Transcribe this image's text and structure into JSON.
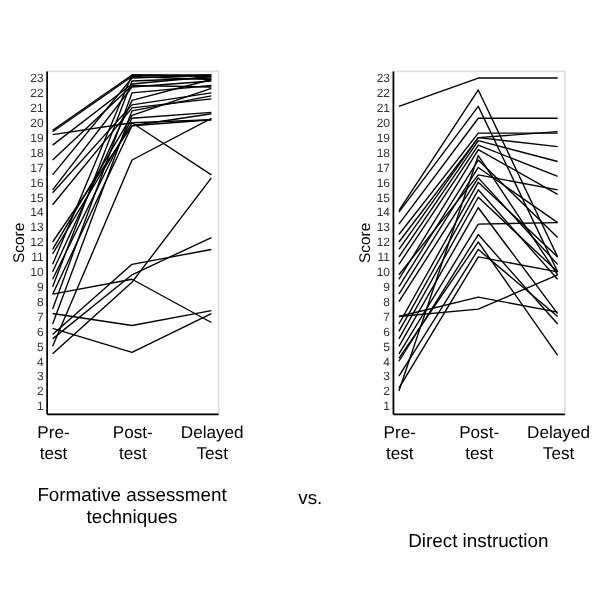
{
  "chart_data": [
    {
      "type": "line",
      "title": "Formative assessment techniques",
      "ylabel": "Score",
      "categories": [
        "Pre-\ntest",
        "Post-\ntest",
        "Delayed\nTest"
      ],
      "ylim": [
        0.5,
        23.5
      ],
      "yticks": [
        1,
        2,
        3,
        4,
        5,
        6,
        7,
        8,
        9,
        10,
        11,
        12,
        13,
        14,
        15,
        16,
        17,
        18,
        19,
        20,
        21,
        22,
        23
      ],
      "grid": false,
      "legend": false,
      "marker": "none",
      "line_style": "solid",
      "series": [
        {
          "color": "#000000",
          "values": [
            19.5,
            23.2,
            23.2
          ]
        },
        {
          "color": "#000000",
          "values": [
            19.4,
            23.1,
            22.9
          ]
        },
        {
          "color": "#000000",
          "values": [
            19.2,
            20.0,
            16.5
          ]
        },
        {
          "color": "#000000",
          "values": [
            18.5,
            22.6,
            23.1
          ]
        },
        {
          "color": "#000000",
          "values": [
            17.5,
            22.5,
            22.4
          ]
        },
        {
          "color": "#000000",
          "values": [
            16.5,
            23.0,
            23.2
          ]
        },
        {
          "color": "#000000",
          "values": [
            15.5,
            22.4,
            22.8
          ]
        },
        {
          "color": "#000000",
          "values": [
            15.3,
            21.2,
            22.0
          ]
        },
        {
          "color": "#000000",
          "values": [
            14.5,
            21.0,
            21.6
          ]
        },
        {
          "color": "#000000",
          "values": [
            11.5,
            20.5,
            22.3
          ]
        },
        {
          "color": "#000000",
          "values": [
            11.2,
            20.0,
            20.2
          ]
        },
        {
          "color": "#000000",
          "values": [
            10.5,
            23.2,
            23.1
          ]
        },
        {
          "color": "#000000",
          "values": [
            10.0,
            21.5,
            22.9
          ]
        },
        {
          "color": "#000000",
          "values": [
            9.5,
            20.3,
            20.7
          ]
        },
        {
          "color": "#000000",
          "values": [
            9.0,
            22.8,
            23.0
          ]
        },
        {
          "color": "#000000",
          "values": [
            8.5,
            19.8,
            20.2
          ]
        },
        {
          "color": "#000000",
          "values": [
            8.5,
            9.5,
            6.6
          ]
        },
        {
          "color": "#000000",
          "values": [
            7.2,
            6.4,
            7.4
          ]
        },
        {
          "color": "#000000",
          "values": [
            6.2,
            4.6,
            7.2
          ]
        },
        {
          "color": "#000000",
          "values": [
            5.8,
            10.5,
            11.5
          ]
        },
        {
          "color": "#000000",
          "values": [
            5.5,
            9.8,
            12.3
          ]
        },
        {
          "color": "#000000",
          "values": [
            4.5,
            9.3,
            16.3
          ]
        },
        {
          "color": "#000000",
          "values": [
            5.0,
            17.5,
            20.3
          ]
        },
        {
          "color": "#000000",
          "values": [
            6.5,
            20.8,
            21.8
          ]
        },
        {
          "color": "#000000",
          "values": [
            7.5,
            22.0,
            22.5
          ]
        },
        {
          "color": "#000000",
          "values": [
            12.0,
            19.8,
            20.6
          ]
        }
      ]
    },
    {
      "type": "line",
      "title": "Direct instruction",
      "annotations": [
        "vs."
      ],
      "ylabel": "Score",
      "categories": [
        "Pre-\ntest",
        "Post-\ntest",
        "Delayed\nTest"
      ],
      "ylim": [
        0.5,
        23.5
      ],
      "yticks": [
        1,
        2,
        3,
        4,
        5,
        6,
        7,
        8,
        9,
        10,
        11,
        12,
        13,
        14,
        15,
        16,
        17,
        18,
        19,
        20,
        21,
        22,
        23
      ],
      "grid": false,
      "legend": false,
      "marker": "none",
      "line_style": "solid",
      "series": [
        {
          "color": "#000000",
          "values": [
            21.1,
            23.0,
            23.0
          ]
        },
        {
          "color": "#000000",
          "values": [
            14.1,
            22.2,
            11.0
          ]
        },
        {
          "color": "#000000",
          "values": [
            14.0,
            21.1,
            10.0
          ]
        },
        {
          "color": "#000000",
          "values": [
            13.2,
            20.3,
            20.3
          ]
        },
        {
          "color": "#000000",
          "values": [
            12.5,
            19.3,
            19.3
          ]
        },
        {
          "color": "#000000",
          "values": [
            12.0,
            19.0,
            18.4
          ]
        },
        {
          "color": "#000000",
          "values": [
            11.0,
            18.8,
            17.4
          ]
        },
        {
          "color": "#000000",
          "values": [
            10.5,
            18.5,
            16.4
          ]
        },
        {
          "color": "#000000",
          "values": [
            9.5,
            18.2,
            15.2
          ]
        },
        {
          "color": "#000000",
          "values": [
            9.0,
            17.5,
            12.3
          ]
        },
        {
          "color": "#000000",
          "values": [
            8.5,
            17.0,
            13.3
          ]
        },
        {
          "color": "#000000",
          "values": [
            8.0,
            16.3,
            10.5
          ]
        },
        {
          "color": "#000000",
          "values": [
            7.0,
            8.3,
            7.3
          ]
        },
        {
          "color": "#000000",
          "values": [
            7.0,
            7.5,
            9.8
          ]
        },
        {
          "color": "#000000",
          "values": [
            6.5,
            16.0,
            11.0
          ]
        },
        {
          "color": "#000000",
          "values": [
            6.0,
            15.5,
            9.5
          ]
        },
        {
          "color": "#000000",
          "values": [
            5.5,
            15.0,
            10.0
          ]
        },
        {
          "color": "#000000",
          "values": [
            5.0,
            14.3,
            7.2
          ]
        },
        {
          "color": "#000000",
          "values": [
            4.5,
            13.2,
            13.3
          ]
        },
        {
          "color": "#000000",
          "values": [
            4.0,
            12.5,
            6.5
          ]
        },
        {
          "color": "#000000",
          "values": [
            4.2,
            12.0,
            4.4
          ]
        },
        {
          "color": "#000000",
          "values": [
            3.0,
            11.5,
            7.0
          ]
        },
        {
          "color": "#000000",
          "values": [
            2.2,
            11.0,
            10.0
          ]
        },
        {
          "color": "#000000",
          "values": [
            2.0,
            17.8,
            9.8
          ]
        },
        {
          "color": "#000000",
          "values": [
            9.8,
            16.5,
            15.5
          ]
        },
        {
          "color": "#000000",
          "values": [
            11.5,
            19.0,
            19.4
          ]
        }
      ]
    }
  ]
}
